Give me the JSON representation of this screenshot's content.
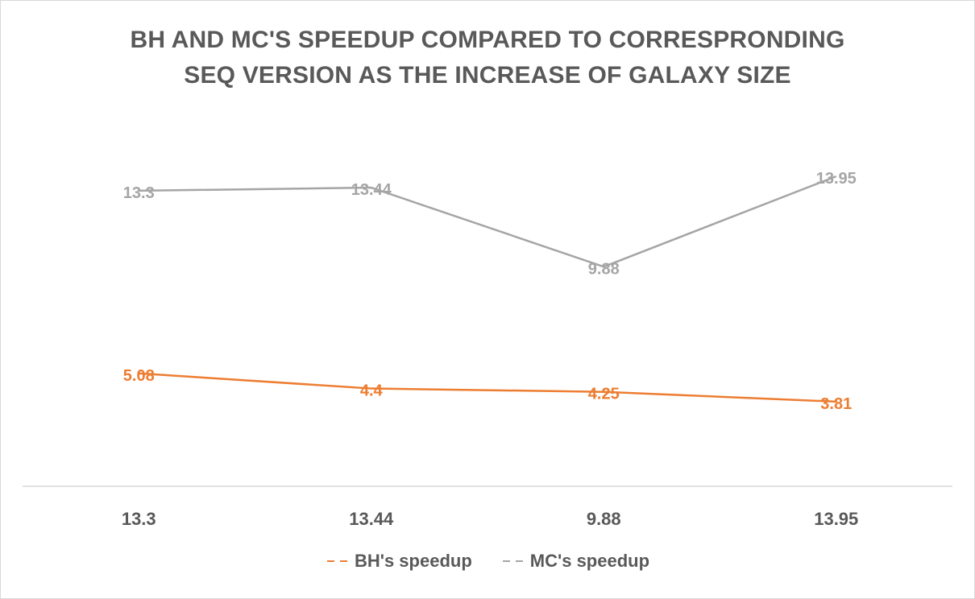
{
  "chart_data": {
    "type": "line",
    "title_lines": [
      "BH AND MC'S SPEEDUP COMPARED TO CORRESPRONDING",
      "SEQ VERSION AS THE INCREASE OF GALAXY SIZE"
    ],
    "categories": [
      "13.3",
      "13.44",
      "9.88",
      "13.95"
    ],
    "series": [
      {
        "name": "BH's speedup",
        "values": [
          5.08,
          4.4,
          4.25,
          3.81
        ],
        "labels": [
          "5.08",
          "4.4",
          "4.25",
          "3.81"
        ],
        "color": "#ed7d31"
      },
      {
        "name": "MC's speedup",
        "values": [
          13.3,
          13.44,
          9.88,
          13.95
        ],
        "labels": [
          "13.3",
          "13.44",
          "9.88",
          "13.95"
        ],
        "color": "#a5a5a5"
      }
    ],
    "ylim": [
      0,
      16
    ],
    "grid": false,
    "legend_position": "bottom",
    "axis_color": "#d9d9d9",
    "text_color": "#595959"
  }
}
